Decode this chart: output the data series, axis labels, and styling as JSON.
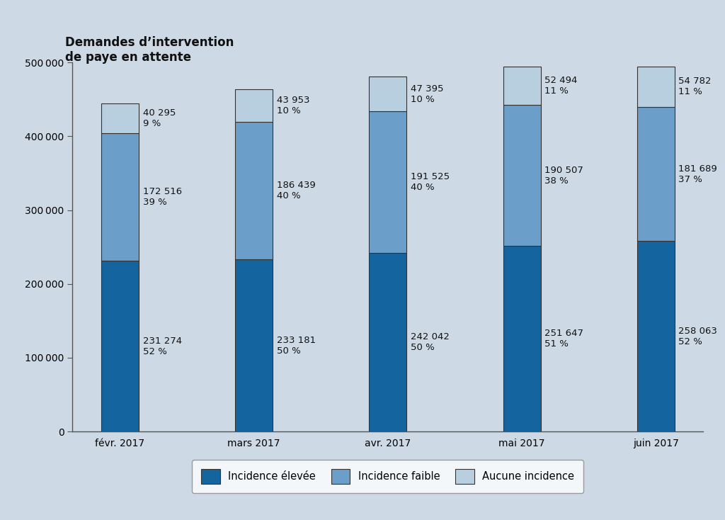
{
  "title_line1": "Demandes d’intervention",
  "title_line2": "de paye en attente",
  "categories": [
    "févr. 2017",
    "mars 2017",
    "avr. 2017",
    "mai 2017",
    "juin 2017"
  ],
  "high": [
    231274,
    233181,
    242042,
    251647,
    258063
  ],
  "medium": [
    172516,
    186439,
    191525,
    190507,
    181689
  ],
  "low": [
    40295,
    43953,
    47395,
    52494,
    54782
  ],
  "high_pct": [
    "52 %",
    "50 %",
    "50 %",
    "51 %",
    "52 %"
  ],
  "medium_pct": [
    "39 %",
    "40 %",
    "40 %",
    "38 %",
    "37 %"
  ],
  "low_pct": [
    "9 %",
    "10 %",
    "10 %",
    "11 %",
    "11 %"
  ],
  "high_labels": [
    "231 274",
    "233 181",
    "242 042",
    "251 647",
    "258 063"
  ],
  "medium_labels": [
    "172 516",
    "186 439",
    "191 525",
    "190 507",
    "181 689"
  ],
  "low_labels": [
    "40 295",
    "43 953",
    "47 395",
    "52 494",
    "54 782"
  ],
  "color_high": "#1464a0",
  "color_medium": "#6b9ec8",
  "color_low": "#b8cfe0",
  "background_color": "#cdd9e5",
  "legend_background": "#ffffff",
  "ylim": [
    0,
    500000
  ],
  "yticks": [
    0,
    100000,
    200000,
    300000,
    400000,
    500000
  ],
  "bar_width": 0.28,
  "label_fontsize": 9.5,
  "title_fontsize": 12,
  "tick_fontsize": 10,
  "legend_fontsize": 10.5
}
